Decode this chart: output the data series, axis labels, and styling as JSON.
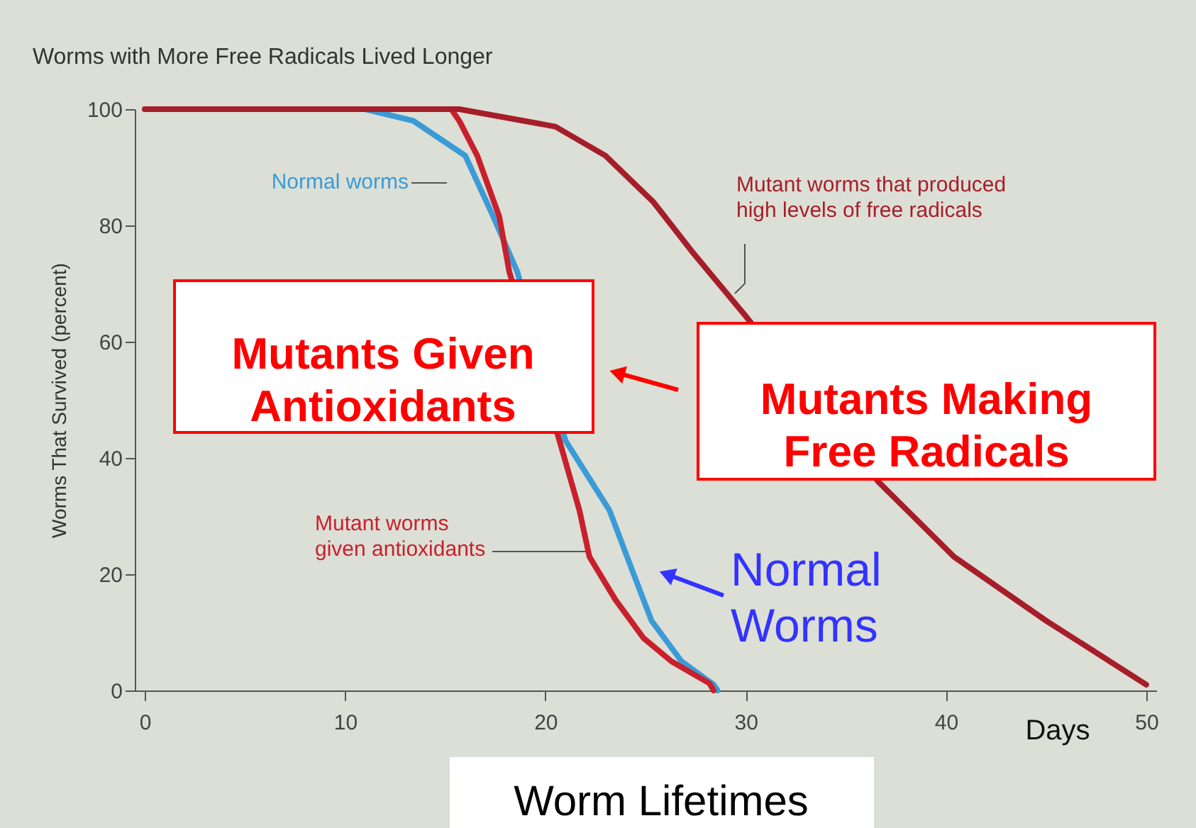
{
  "chart_data": {
    "type": "line",
    "title": "Worms with More Free Radicals Lived Longer",
    "xlabel": "Days",
    "ylabel": "Worms That Survived (percent)",
    "xlim": [
      -0.5,
      50.5
    ],
    "xticks": [
      0,
      10,
      20,
      30,
      40,
      50
    ],
    "ylim": [
      0,
      100
    ],
    "yticks": [
      0,
      20,
      40,
      60,
      80,
      100
    ],
    "grid": false,
    "legend": false,
    "marker": "none",
    "line_style": "solid",
    "series": [
      {
        "name": "Normal worms",
        "color": "#3b9bd6",
        "x": [
          11,
          13.4,
          16.0,
          17.4,
          18.6,
          21.0,
          23.2,
          24.3,
          25.3,
          26.8,
          28.4,
          28.6
        ],
        "values": [
          100,
          98,
          92,
          81.5,
          72,
          43,
          31,
          21,
          12,
          5,
          1,
          0
        ]
      },
      {
        "name": "Mutant worms\ngiven antioxidants",
        "color": "#c8202c",
        "x": [
          0,
          15.3,
          15.7,
          16.6,
          17.7,
          18.2,
          20.7,
          21.7,
          22.2,
          23.5,
          24.9,
          26.3,
          28.2,
          28.4
        ],
        "values": [
          100,
          100,
          98,
          92,
          81.5,
          72,
          43,
          31,
          23,
          15.6,
          9,
          5,
          1.2,
          0
        ]
      },
      {
        "name": "Mutant worms that produced\nhigh levels of free radicals",
        "color": "#a61e2a",
        "x": [
          0,
          15.7,
          20.5,
          23,
          25.4,
          27.3,
          30,
          36.6,
          40.4,
          45,
          50
        ],
        "values": [
          100,
          100,
          97,
          92,
          84,
          75.6,
          64.4,
          36,
          23,
          12,
          1
        ]
      }
    ],
    "annotations": [
      "Mutants Given\nAntioxidants",
      "Mutants Making\nFree Radicals",
      "Normal\nWorms",
      "Worm Lifetimes"
    ]
  }
}
